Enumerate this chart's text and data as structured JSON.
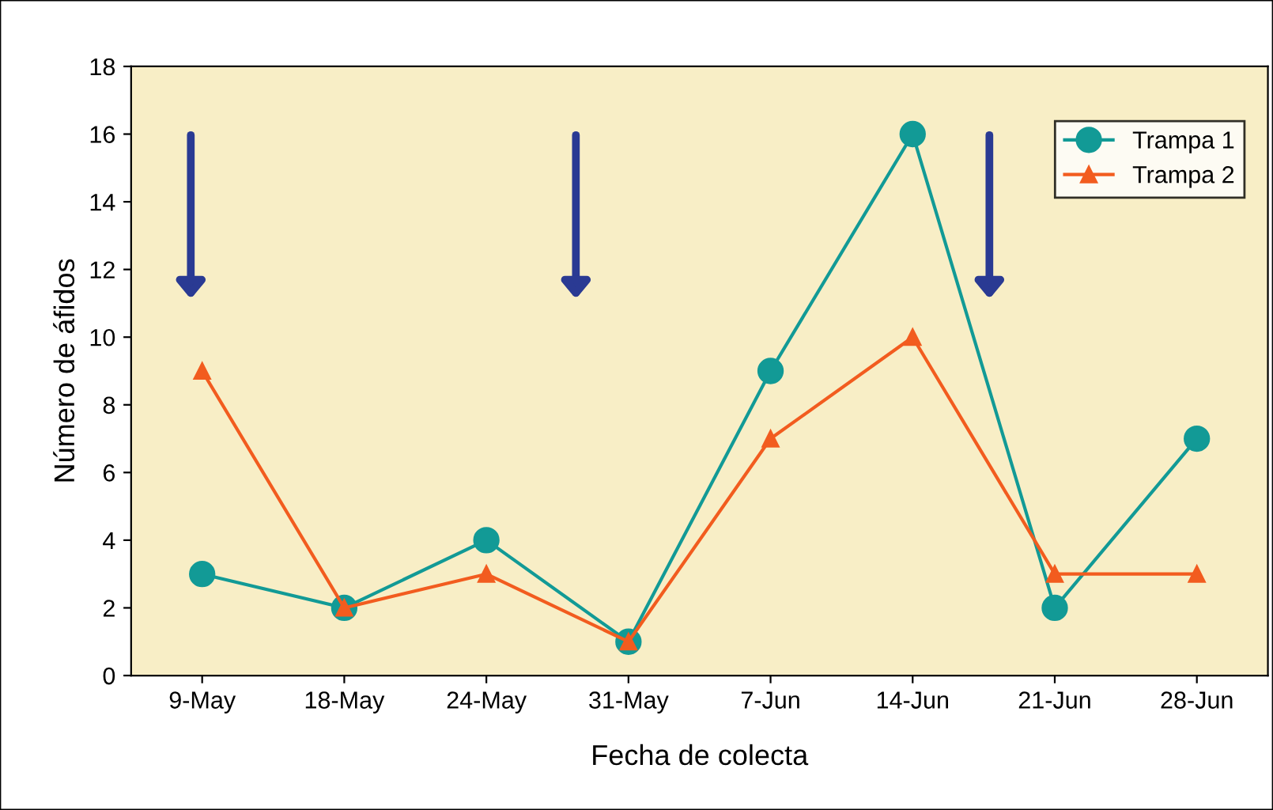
{
  "chart_data": {
    "type": "line",
    "xlabel": "Fecha de colecta",
    "ylabel": "Número de áfidos",
    "categories": [
      "9-May",
      "18-May",
      "24-May",
      "31-May",
      "7-Jun",
      "14-Jun",
      "21-Jun",
      "28-Jun"
    ],
    "series": [
      {
        "name": "Trampa 1",
        "color": "#129a96",
        "marker": "circle",
        "values": [
          3,
          2,
          4,
          1,
          9,
          16,
          2,
          7
        ]
      },
      {
        "name": "Trampa 2",
        "color": "#f25c1f",
        "marker": "triangle",
        "values": [
          9,
          2,
          3,
          1,
          7,
          10,
          3,
          3
        ]
      }
    ],
    "ylim": [
      0,
      18
    ],
    "yticks": [
      0,
      2,
      4,
      6,
      8,
      10,
      12,
      14,
      16,
      18
    ],
    "grid": false,
    "legend": "top right"
  }
}
